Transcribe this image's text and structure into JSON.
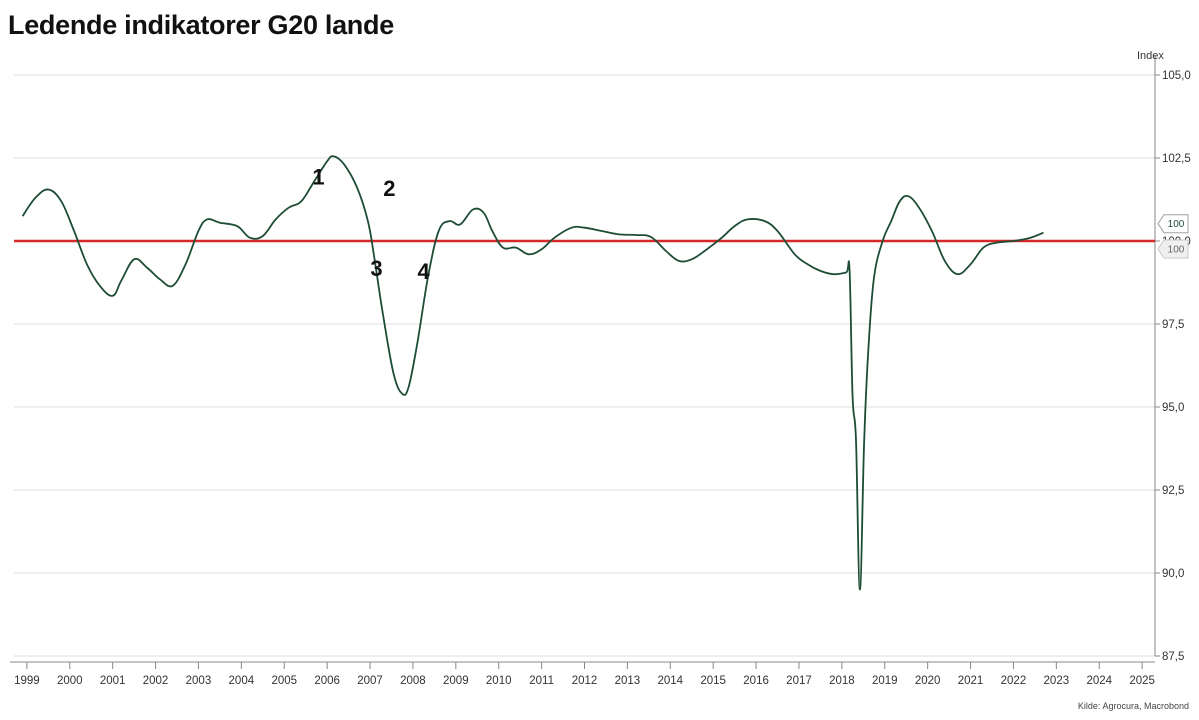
{
  "header": {
    "title": "Ledende indikatorer G20 lande"
  },
  "footer": {
    "source": "Kilde: Agrocura, Macrobond"
  },
  "chart_data": {
    "type": "line",
    "title": "Ledende indikatorer G20 lande",
    "ylabel": "Index",
    "xlabel": "",
    "ylim": [
      87.5,
      105.0
    ],
    "xlim": [
      1998.7,
      2025.3
    ],
    "y_ticks": [
      "87,5",
      "90,0",
      "92,5",
      "95,0",
      "97,5",
      "100,0",
      "102,5",
      "105,0"
    ],
    "y_tick_values": [
      87.5,
      90.0,
      92.5,
      95.0,
      97.5,
      100.0,
      102.5,
      105.0
    ],
    "x_ticks": [
      "1999",
      "2000",
      "2001",
      "2002",
      "2003",
      "2004",
      "2005",
      "2006",
      "2007",
      "2008",
      "2009",
      "2010",
      "2011",
      "2012",
      "2013",
      "2014",
      "2015",
      "2016",
      "2017",
      "2018",
      "2019",
      "2020",
      "2021",
      "2022",
      "2023",
      "2024",
      "2025"
    ],
    "x_tick_values": [
      1999,
      2000,
      2001,
      2002,
      2003,
      2004,
      2005,
      2006,
      2007,
      2008,
      2009,
      2010,
      2011,
      2012,
      2013,
      2014,
      2015,
      2016,
      2017,
      2018,
      2019,
      2020,
      2021,
      2022,
      2023,
      2024,
      2025
    ],
    "grid": true,
    "y_axis_position": "right",
    "line_color": "#1e4d35",
    "reference_color": "#d62828",
    "series": [
      {
        "values": [
          [
            1998.9,
            100.75
          ],
          [
            1999.2,
            101.3
          ],
          [
            1999.5,
            101.55
          ],
          [
            1999.8,
            101.2
          ],
          [
            2000.1,
            100.3
          ],
          [
            2000.4,
            99.3
          ],
          [
            2000.7,
            98.65
          ],
          [
            2001.0,
            98.35
          ],
          [
            2001.2,
            98.8
          ],
          [
            2001.5,
            99.45
          ],
          [
            2001.8,
            99.2
          ],
          [
            2002.1,
            98.85
          ],
          [
            2002.4,
            98.65
          ],
          [
            2002.7,
            99.3
          ],
          [
            2003.0,
            100.3
          ],
          [
            2003.2,
            100.65
          ],
          [
            2003.5,
            100.55
          ],
          [
            2003.9,
            100.45
          ],
          [
            2004.2,
            100.1
          ],
          [
            2004.5,
            100.15
          ],
          [
            2004.8,
            100.65
          ],
          [
            2005.1,
            101.0
          ],
          [
            2005.4,
            101.2
          ],
          [
            2005.7,
            101.8
          ],
          [
            2006.0,
            102.4
          ],
          [
            2006.15,
            102.55
          ],
          [
            2006.4,
            102.3
          ],
          [
            2006.7,
            101.6
          ],
          [
            2006.95,
            100.6
          ],
          [
            2007.1,
            99.5
          ],
          [
            2007.3,
            97.8
          ],
          [
            2007.55,
            96.0
          ],
          [
            2007.75,
            95.4
          ],
          [
            2007.9,
            95.6
          ],
          [
            2008.1,
            96.9
          ],
          [
            2008.35,
            98.9
          ],
          [
            2008.6,
            100.3
          ],
          [
            2008.85,
            100.6
          ],
          [
            2009.1,
            100.5
          ],
          [
            2009.4,
            100.95
          ],
          [
            2009.65,
            100.85
          ],
          [
            2009.85,
            100.3
          ],
          [
            2010.1,
            99.8
          ],
          [
            2010.4,
            99.8
          ],
          [
            2010.7,
            99.6
          ],
          [
            2011.0,
            99.75
          ],
          [
            2011.3,
            100.1
          ],
          [
            2011.7,
            100.4
          ],
          [
            2012.0,
            100.4
          ],
          [
            2012.4,
            100.3
          ],
          [
            2012.8,
            100.2
          ],
          [
            2013.2,
            100.18
          ],
          [
            2013.55,
            100.12
          ],
          [
            2013.9,
            99.7
          ],
          [
            2014.2,
            99.4
          ],
          [
            2014.5,
            99.45
          ],
          [
            2014.8,
            99.7
          ],
          [
            2015.2,
            100.1
          ],
          [
            2015.5,
            100.45
          ],
          [
            2015.8,
            100.65
          ],
          [
            2016.2,
            100.6
          ],
          [
            2016.5,
            100.3
          ],
          [
            2016.9,
            99.6
          ],
          [
            2017.2,
            99.3
          ],
          [
            2017.5,
            99.1
          ],
          [
            2017.8,
            99.0
          ],
          [
            2018.1,
            99.05
          ],
          [
            2018.18,
            99.1
          ],
          [
            2018.25,
            95.3
          ],
          [
            2018.33,
            94.0
          ],
          [
            2018.42,
            89.5
          ],
          [
            2018.52,
            94.0
          ],
          [
            2018.62,
            96.8
          ],
          [
            2018.75,
            98.9
          ],
          [
            2018.95,
            100.0
          ],
          [
            2019.15,
            100.6
          ],
          [
            2019.35,
            101.2
          ],
          [
            2019.55,
            101.35
          ],
          [
            2019.8,
            101.0
          ],
          [
            2020.1,
            100.3
          ],
          [
            2020.4,
            99.4
          ],
          [
            2020.7,
            99.0
          ],
          [
            2021.0,
            99.3
          ],
          [
            2021.3,
            99.8
          ],
          [
            2021.6,
            99.95
          ],
          [
            2022.0,
            100.0
          ],
          [
            2022.4,
            100.1
          ],
          [
            2022.7,
            100.25
          ]
        ]
      }
    ],
    "reference_line": {
      "value": 100.0
    },
    "callouts": [
      {
        "label": "100",
        "style": "series"
      },
      {
        "label": "100",
        "style": "reference"
      }
    ],
    "annotations": [
      {
        "text": "1",
        "x": 2005.8,
        "y": 101.7
      },
      {
        "text": "2",
        "x": 2007.45,
        "y": 101.35
      },
      {
        "text": "3",
        "x": 2007.15,
        "y": 98.95
      },
      {
        "text": "4",
        "x": 2008.25,
        "y": 98.85
      }
    ]
  }
}
